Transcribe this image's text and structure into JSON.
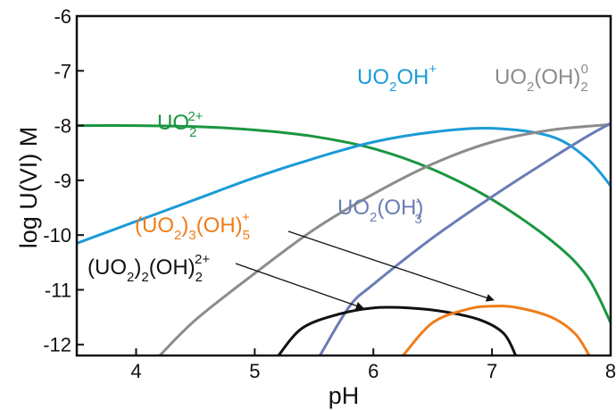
{
  "chart_data": {
    "type": "line",
    "xlabel": "pH",
    "ylabel": "log U(VI) M",
    "xlim": [
      3.5,
      8
    ],
    "ylim": [
      -12.2,
      -6
    ],
    "xticks": [
      "4",
      "5",
      "6",
      "7",
      "8"
    ],
    "yticks": [
      "-6",
      "-7",
      "-8",
      "-9",
      "-10",
      "-11",
      "-12"
    ],
    "grid": false,
    "series": [
      {
        "key": "uo2",
        "color": "#1a9641",
        "points": [
          [
            3.5,
            -8.0
          ],
          [
            4.0,
            -8.0
          ],
          [
            4.5,
            -8.02
          ],
          [
            5.0,
            -8.08
          ],
          [
            5.5,
            -8.2
          ],
          [
            6.0,
            -8.42
          ],
          [
            6.5,
            -8.8
          ],
          [
            7.0,
            -9.35
          ],
          [
            7.5,
            -10.1
          ],
          [
            7.8,
            -10.75
          ],
          [
            8.0,
            -11.6
          ]
        ]
      },
      {
        "key": "uo2oh",
        "color": "#1a9bd7",
        "points": [
          [
            3.5,
            -10.15
          ],
          [
            4.0,
            -9.75
          ],
          [
            4.5,
            -9.35
          ],
          [
            5.0,
            -8.95
          ],
          [
            5.5,
            -8.6
          ],
          [
            6.0,
            -8.3
          ],
          [
            6.5,
            -8.12
          ],
          [
            7.0,
            -8.05
          ],
          [
            7.5,
            -8.2
          ],
          [
            7.8,
            -8.6
          ],
          [
            8.0,
            -9.1
          ]
        ]
      },
      {
        "key": "uo2oh2",
        "color": "#8c8c8c",
        "points": [
          [
            4.2,
            -12.2
          ],
          [
            4.5,
            -11.55
          ],
          [
            5.0,
            -10.7
          ],
          [
            5.5,
            -9.9
          ],
          [
            6.0,
            -9.25
          ],
          [
            6.5,
            -8.7
          ],
          [
            7.0,
            -8.3
          ],
          [
            7.5,
            -8.08
          ],
          [
            8.0,
            -7.98
          ]
        ]
      },
      {
        "key": "uo2oh3",
        "color": "#6a7cb5",
        "points": [
          [
            5.55,
            -12.2
          ],
          [
            5.8,
            -11.3
          ],
          [
            6.0,
            -10.9
          ],
          [
            6.5,
            -10.05
          ],
          [
            7.0,
            -9.3
          ],
          [
            7.5,
            -8.6
          ],
          [
            7.8,
            -8.2
          ],
          [
            8.0,
            -7.96
          ]
        ]
      },
      {
        "key": "u2oh2",
        "color": "#111111",
        "points": [
          [
            5.2,
            -12.2
          ],
          [
            5.4,
            -11.7
          ],
          [
            5.7,
            -11.45
          ],
          [
            6.0,
            -11.33
          ],
          [
            6.3,
            -11.33
          ],
          [
            6.6,
            -11.4
          ],
          [
            6.9,
            -11.55
          ],
          [
            7.1,
            -11.8
          ],
          [
            7.2,
            -12.2
          ]
        ]
      },
      {
        "key": "u3oh5",
        "color": "#ef7d1a",
        "points": [
          [
            6.25,
            -12.2
          ],
          [
            6.5,
            -11.6
          ],
          [
            6.8,
            -11.35
          ],
          [
            7.0,
            -11.3
          ],
          [
            7.2,
            -11.32
          ],
          [
            7.5,
            -11.5
          ],
          [
            7.7,
            -11.8
          ],
          [
            7.82,
            -12.2
          ]
        ]
      }
    ],
    "labels": {
      "uo2": {
        "base": "UO",
        "sub": "2",
        "sup": "2+"
      },
      "uo2oh": {
        "p1": "UO",
        "sub": "2",
        "p2": "OH",
        "sup": "+"
      },
      "uo2oh2": {
        "p1": "UO",
        "sub1": "2",
        "p2": "(OH)",
        "sub2": "2",
        "sup": "0"
      },
      "uo2oh3": {
        "p1": "UO",
        "sub1": "2",
        "p2": "(OH)",
        "sub2": "3",
        "sup": "-"
      },
      "u3oh5": {
        "p1": "(UO",
        "sub1": "2",
        "p2": ")",
        "sub2": "3",
        "p3": "(OH)",
        "sub3": "5",
        "sup": "+"
      },
      "u2oh2": {
        "p1": "(UO",
        "sub1": "2",
        "p2": ")",
        "sub2": "2",
        "p3": "(OH)",
        "sub3": "2",
        "sup": "2+"
      }
    }
  }
}
